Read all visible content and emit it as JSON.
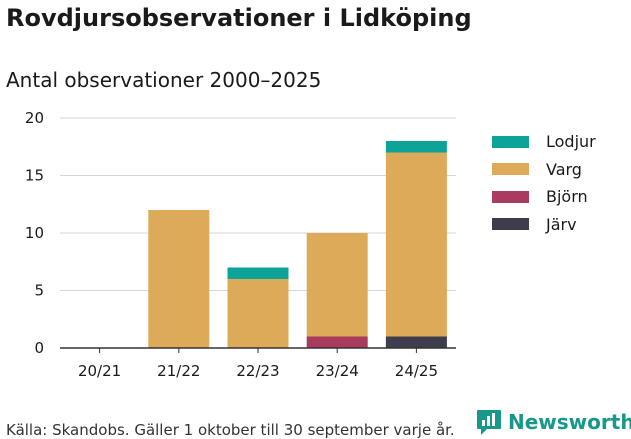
{
  "title": "Rovdjursobservationer i Lidköping",
  "subtitle": "Antal observationer 2000–2025",
  "footer": "Källa: Skandobs. Gäller 1 oktober till 30 september varje år.",
  "brand": {
    "name": "Newsworthy",
    "icon": "newsworthy-logo-icon",
    "color": "#16998a"
  },
  "chart_data": {
    "type": "bar",
    "stacked": true,
    "categories": [
      "20/21",
      "21/22",
      "22/23",
      "23/24",
      "24/25"
    ],
    "series": [
      {
        "name": "Järv",
        "color": "#3e3d4d",
        "values": [
          0,
          0,
          0,
          0,
          1
        ]
      },
      {
        "name": "Björn",
        "color": "#a83b5e",
        "values": [
          0,
          0,
          0,
          1,
          0
        ]
      },
      {
        "name": "Varg",
        "color": "#dcaa58",
        "values": [
          0,
          12,
          6,
          9,
          16
        ]
      },
      {
        "name": "Lodjur",
        "color": "#0ea399",
        "values": [
          0,
          0,
          1,
          0,
          1
        ]
      }
    ],
    "legend_order": [
      "Lodjur",
      "Varg",
      "Björn",
      "Järv"
    ],
    "ylim": [
      0,
      20
    ],
    "yticks": [
      0,
      5,
      10,
      15,
      20
    ],
    "grid": true,
    "legend_position": "right"
  }
}
